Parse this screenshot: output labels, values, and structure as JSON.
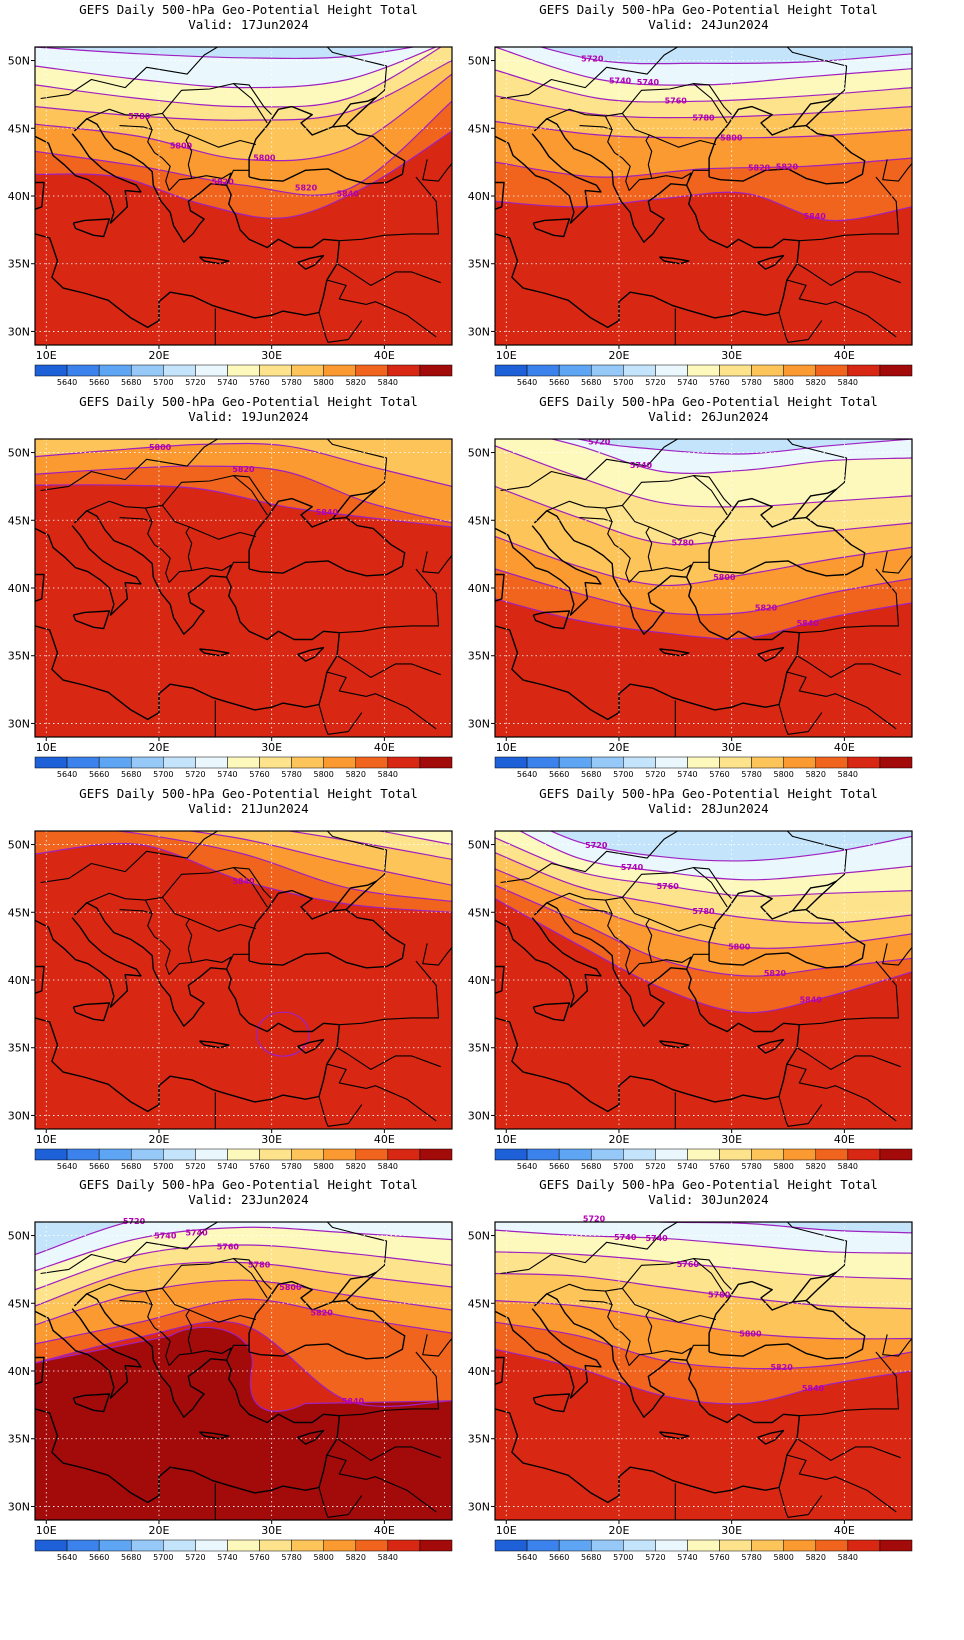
{
  "title_text": "GEFS Daily 500-hPa Geo-Potential Height Total",
  "valid_prefix": "Valid:",
  "colors": {
    "contour_line": "#a020c0",
    "coast": "#000000",
    "grid": "#ffffff"
  },
  "colorbar": {
    "labels": [
      "5640",
      "5660",
      "5680",
      "5700",
      "5720",
      "5740",
      "5760",
      "5780",
      "5800",
      "5820",
      "5840"
    ],
    "colors": [
      "#1e60d8",
      "#3c82ec",
      "#5ea6f4",
      "#96c8f8",
      "#c4e4fc",
      "#eaf8fd",
      "#fdf8bc",
      "#fde48c",
      "#fdc45a",
      "#fa9a30",
      "#f0641e",
      "#d82814",
      "#a30a0a"
    ]
  },
  "axes": {
    "xticks": [
      "10E",
      "20E",
      "30E",
      "40E"
    ],
    "yticks": [
      "50N",
      "45N",
      "40N",
      "35N",
      "30N"
    ],
    "xlim": [
      9,
      46
    ],
    "ylim": [
      29,
      51
    ]
  },
  "chart_data": [
    {
      "type": "heatmap",
      "date": "17Jun2024",
      "contour_labels": [
        "5780",
        "5800",
        "5820",
        "5800",
        "5820",
        "5840"
      ],
      "isolines": [
        {
          "v": 5720,
          "ys": [
            51,
            50.5,
            50.2,
            50.3,
            51.5
          ]
        },
        {
          "v": 5740,
          "ys": [
            49.6,
            48.6,
            48.0,
            48.6,
            51.5
          ]
        },
        {
          "v": 5760,
          "ys": [
            48.2,
            47.2,
            46.6,
            47.2,
            51.5
          ]
        },
        {
          "v": 5780,
          "ys": [
            46.6,
            45.9,
            45.6,
            46.2,
            50.0
          ]
        },
        {
          "v": 5800,
          "ys": [
            45.3,
            44.4,
            42.7,
            43.5,
            49.0
          ]
        },
        {
          "v": 5820,
          "ys": [
            43.3,
            42.2,
            40.8,
            40.5,
            47.0
          ]
        },
        {
          "v": 5840,
          "ys": [
            41.6,
            41.4,
            39.4,
            38.4,
            40.8,
            44.8
          ]
        }
      ]
    },
    {
      "type": "heatmap",
      "date": "24Jun2024",
      "contour_labels": [
        "5720",
        "5740",
        "5740",
        "5760",
        "5780",
        "5800",
        "5820",
        "5820",
        "5840"
      ],
      "isolines": [
        {
          "v": 5720,
          "ys": [
            52,
            50.0,
            49.8,
            49.9,
            50.5
          ]
        },
        {
          "v": 5740,
          "ys": [
            51,
            48.6,
            48.2,
            48.8,
            49.4
          ]
        },
        {
          "v": 5760,
          "ys": [
            49.3,
            47.2,
            47.0,
            47.4,
            48.0
          ]
        },
        {
          "v": 5780,
          "ys": [
            47.4,
            46.0,
            45.8,
            46.1,
            46.6
          ]
        },
        {
          "v": 5800,
          "ys": [
            45.5,
            44.5,
            44.3,
            44.4,
            44.9
          ]
        },
        {
          "v": 5820,
          "ys": [
            42.5,
            41.4,
            42.0,
            42.2,
            42.8
          ]
        },
        {
          "v": 5840,
          "ys": [
            39.6,
            39.2,
            39.8,
            40.2,
            38.2,
            39.2
          ]
        }
      ]
    },
    {
      "type": "heatmap",
      "date": "19Jun2024",
      "contour_labels": [
        "5800",
        "5820",
        "5840"
      ],
      "isolines": [
        {
          "v": 5800,
          "ys": [
            49.7,
            50.2,
            50.6,
            50.5,
            49.0,
            47.5
          ]
        },
        {
          "v": 5820,
          "ys": [
            48.4,
            48.8,
            49.0,
            48.6,
            46.3,
            44.8
          ]
        },
        {
          "v": 5840,
          "ys": [
            47.6,
            47.6,
            47.3,
            46.0,
            45.2,
            44.5
          ]
        }
      ]
    },
    {
      "type": "heatmap",
      "date": "26Jun2024",
      "contour_labels": [
        "5720",
        "5740",
        "5780",
        "5800",
        "5820",
        "5840"
      ],
      "isolines": [
        {
          "v": 5720,
          "ys": [
            53,
            51,
            50.2,
            49.9,
            50.5,
            51
          ]
        },
        {
          "v": 5740,
          "ys": [
            52,
            50.5,
            48.6,
            48.7,
            49.4,
            49.6
          ]
        },
        {
          "v": 5760,
          "ys": [
            50.5,
            48.2,
            46.3,
            46.0,
            46.4,
            46.8
          ]
        },
        {
          "v": 5780,
          "ys": [
            47.5,
            45.2,
            43.3,
            43.6,
            44.2,
            44.8
          ]
        },
        {
          "v": 5800,
          "ys": [
            43.8,
            41.6,
            40.2,
            41.0,
            42.1,
            43.0
          ]
        },
        {
          "v": 5820,
          "ys": [
            41.4,
            39.6,
            38.2,
            38.2,
            39.6,
            40.7
          ]
        },
        {
          "v": 5840,
          "ys": [
            39.2,
            37.6,
            36.7,
            36.3,
            37.8,
            38.9
          ]
        }
      ]
    },
    {
      "type": "heatmap",
      "date": "21Jun2024",
      "contour_labels": [
        "5840"
      ],
      "isolines": [
        {
          "v": 5740,
          "ys": [
            54,
            54,
            53,
            52.5,
            51
          ]
        },
        {
          "v": 5760,
          "ys": [
            54,
            53.2,
            52.3,
            51.4,
            50.0
          ]
        },
        {
          "v": 5780,
          "ys": [
            53.5,
            52.4,
            51.5,
            50.3,
            48.9
          ]
        },
        {
          "v": 5800,
          "ys": [
            52.6,
            51.5,
            50.4,
            48.6,
            47.0
          ]
        },
        {
          "v": 5820,
          "ys": [
            51.6,
            50.8,
            49.3,
            46.8,
            45.8
          ]
        },
        {
          "v": 5840,
          "ys": [
            49.3,
            50.0,
            47.3,
            45.6,
            45.0
          ]
        }
      ]
    },
    {
      "type": "heatmap",
      "date": "28Jun2024",
      "contour_labels": [
        "5720",
        "5740",
        "5760",
        "5780",
        "5800",
        "5820",
        "5840"
      ],
      "isolines": [
        {
          "v": 5720,
          "ys": [
            53,
            50.2,
            49.1,
            48.8,
            49.4,
            50.6
          ]
        },
        {
          "v": 5740,
          "ys": [
            52,
            49.0,
            48.0,
            47.4,
            47.8,
            48.4
          ]
        },
        {
          "v": 5760,
          "ys": [
            50.5,
            48.0,
            47.0,
            46.2,
            46.4,
            46.6
          ]
        },
        {
          "v": 5780,
          "ys": [
            49.4,
            46.9,
            45.6,
            44.6,
            44.2,
            44.8
          ]
        },
        {
          "v": 5800,
          "ys": [
            48.2,
            45.7,
            43.6,
            42.4,
            42.6,
            43.4
          ]
        },
        {
          "v": 5820,
          "ys": [
            47.0,
            44.3,
            41.5,
            40.3,
            40.9,
            41.6
          ]
        },
        {
          "v": 5840,
          "ys": [
            46.0,
            42.6,
            39.4,
            37.6,
            38.8,
            40.6
          ]
        }
      ]
    },
    {
      "type": "heatmap",
      "date": "23Jun2024",
      "contour_labels": [
        "5720",
        "5740",
        "5740",
        "5760",
        "5780",
        "5800",
        "5820",
        "5840"
      ],
      "isolines": [
        {
          "v": 5720,
          "ys": [
            48.6,
            51.2,
            51.8,
            51.6,
            51.2
          ]
        },
        {
          "v": 5740,
          "ys": [
            47.4,
            49.8,
            50.6,
            50.2,
            49.7
          ]
        },
        {
          "v": 5760,
          "ys": [
            46.0,
            48.6,
            49.3,
            48.7,
            47.8
          ]
        },
        {
          "v": 5780,
          "ys": [
            44.8,
            47.5,
            48.0,
            47.1,
            46.2
          ]
        },
        {
          "v": 5800,
          "ys": [
            43.4,
            45.8,
            46.7,
            45.6,
            44.5
          ]
        },
        {
          "v": 5820,
          "ys": [
            42.0,
            43.6,
            45.3,
            44.0,
            42.8
          ]
        },
        {
          "v": 5840,
          "ys": [
            40.6,
            42.5,
            43.4,
            37.8,
            37.8
          ]
        }
      ]
    },
    {
      "type": "heatmap",
      "date": "30Jun2024",
      "contour_labels": [
        "5720",
        "5740",
        "5740",
        "5760",
        "5780",
        "5800",
        "5820",
        "5840"
      ],
      "isolines": [
        {
          "v": 5720,
          "ys": [
            51.5,
            51.3,
            51.0,
            50.9,
            50.4,
            50.2
          ]
        },
        {
          "v": 5740,
          "ys": [
            50.4,
            50.0,
            49.8,
            49.3,
            48.8,
            48.7
          ]
        },
        {
          "v": 5760,
          "ys": [
            48.8,
            48.6,
            48.1,
            47.5,
            47.0,
            46.8
          ]
        },
        {
          "v": 5780,
          "ys": [
            47.2,
            47.0,
            46.2,
            45.4,
            44.8,
            44.6
          ]
        },
        {
          "v": 5800,
          "ys": [
            45.2,
            44.8,
            43.8,
            42.8,
            42.4,
            42.4
          ]
        },
        {
          "v": 5820,
          "ys": [
            43.6,
            42.6,
            40.8,
            40.2,
            40.4,
            41.4
          ]
        },
        {
          "v": 5840,
          "ys": [
            41.6,
            40.2,
            38.2,
            37.6,
            39.0,
            40.0
          ]
        }
      ]
    }
  ]
}
